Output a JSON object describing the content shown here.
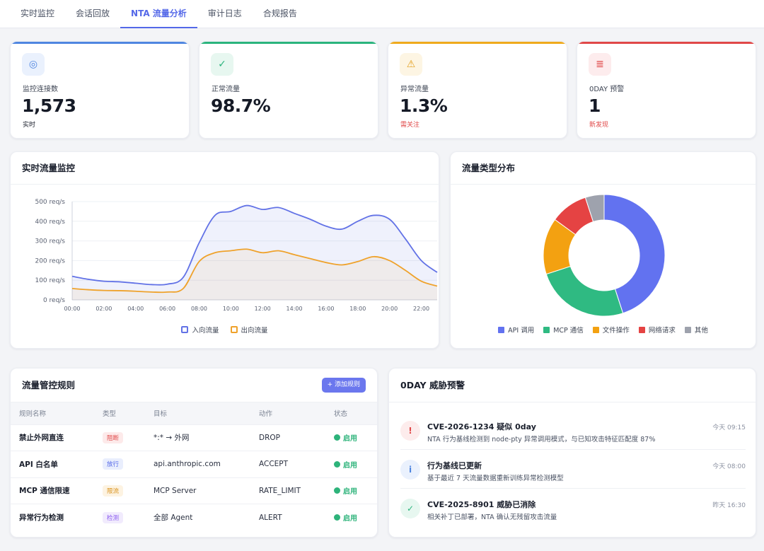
{
  "tabs": [
    {
      "label": "实时监控",
      "active": false
    },
    {
      "label": "会话回放",
      "active": false
    },
    {
      "label": "NTA 流量分析",
      "active": true
    },
    {
      "label": "审计日志",
      "active": false
    },
    {
      "label": "合规报告",
      "active": false
    }
  ],
  "stats": [
    {
      "label": "监控连接数",
      "value": "1,573",
      "sub": "实时",
      "icon": "target-icon",
      "glyph": "◎",
      "accent": "#4f86e0",
      "icon_bg": "#eaf1fd",
      "icon_color": "#4f86e0",
      "sub_color": "#1a1f2c"
    },
    {
      "label": "正常流量",
      "value": "98.7%",
      "sub": "",
      "icon": "check-icon",
      "glyph": "✓",
      "accent": "#2bb47d",
      "icon_bg": "#e7f7f0",
      "icon_color": "#2bb47d",
      "sub_color": "#2bb47d"
    },
    {
      "label": "异常流量",
      "value": "1.3%",
      "sub": "需关注",
      "icon": "warning-icon",
      "glyph": "⚠",
      "accent": "#efaa1d",
      "icon_bg": "#fdf5e3",
      "icon_color": "#e3a020",
      "sub_color": "#e04848"
    },
    {
      "label": "0DAY 预警",
      "value": "1",
      "sub": "新发现",
      "icon": "alarm-list-icon",
      "glyph": "≣",
      "accent": "#e04848",
      "icon_bg": "#fdeced",
      "icon_color": "#e04848",
      "sub_color": "#e04848"
    }
  ],
  "traffic_panel": {
    "title": "实时流量监控"
  },
  "distribution_panel": {
    "title": "流量类型分布"
  },
  "chart_data": [
    {
      "type": "line",
      "x": [
        "00:00",
        "01:00",
        "02:00",
        "03:00",
        "04:00",
        "05:00",
        "06:00",
        "07:00",
        "08:00",
        "09:00",
        "10:00",
        "11:00",
        "12:00",
        "13:00",
        "14:00",
        "15:00",
        "16:00",
        "17:00",
        "18:00",
        "19:00",
        "20:00",
        "21:00",
        "22:00",
        "23:00"
      ],
      "x_ticks": [
        "00:00",
        "02:00",
        "04:00",
        "06:00",
        "08:00",
        "10:00",
        "12:00",
        "14:00",
        "16:00",
        "18:00",
        "20:00",
        "22:00"
      ],
      "y_ticks": [
        "0 req/s",
        "100 req/s",
        "200 req/s",
        "300 req/s",
        "400 req/s",
        "500 req/s"
      ],
      "ylim": [
        0,
        500
      ],
      "series": [
        {
          "name": "入向流量",
          "color": "#6272e6",
          "values": [
            120,
            105,
            95,
            92,
            85,
            78,
            80,
            115,
            290,
            430,
            450,
            480,
            460,
            470,
            440,
            410,
            375,
            360,
            400,
            430,
            410,
            310,
            200,
            140
          ]
        },
        {
          "name": "出向流量",
          "color": "#efa22b",
          "values": [
            58,
            52,
            48,
            47,
            44,
            40,
            40,
            58,
            195,
            240,
            250,
            258,
            240,
            250,
            230,
            210,
            190,
            178,
            195,
            220,
            200,
            150,
            95,
            70
          ]
        }
      ],
      "grid": true,
      "legend": "bottom"
    },
    {
      "type": "pie",
      "categories": [
        "API 调用",
        "MCP 通信",
        "文件操作",
        "网络请求",
        "其他"
      ],
      "values": [
        45,
        25,
        15,
        10,
        5
      ],
      "colors": [
        "#6272f0",
        "#2fba82",
        "#f3a111",
        "#e54343",
        "#9ea2ad"
      ],
      "legend": "bottom"
    }
  ],
  "rules_panel": {
    "title": "流量管控规则",
    "add_label": "+ 添加规则",
    "columns": [
      "规则名称",
      "类型",
      "目标",
      "动作",
      "状态"
    ],
    "rows": [
      {
        "name": "禁止外网直连",
        "type": "阻断",
        "type_bg": "#fdeaea",
        "type_color": "#e04848",
        "target": "*:* → 外网",
        "action": "DROP",
        "status": "启用"
      },
      {
        "name": "API 白名单",
        "type": "放行",
        "type_bg": "#e9eefd",
        "type_color": "#5468e8",
        "target": "api.anthropic.com",
        "action": "ACCEPT",
        "status": "启用"
      },
      {
        "name": "MCP 通信限速",
        "type": "限流",
        "type_bg": "#fdf3e2",
        "type_color": "#d89018",
        "target": "MCP Server",
        "action": "RATE_LIMIT",
        "status": "启用"
      },
      {
        "name": "异常行为检测",
        "type": "检测",
        "type_bg": "#f1ebfd",
        "type_color": "#8b5cf0",
        "target": "全部 Agent",
        "action": "ALERT",
        "status": "启用"
      }
    ]
  },
  "threat_panel": {
    "title": "0DAY 威胁预警",
    "items": [
      {
        "icon": "alert-icon",
        "glyph": "!",
        "bg": "#fdecec",
        "color": "#e04848",
        "title": "CVE-2026-1234 疑似 0day",
        "desc": "NTA 行为基线检测到 node-pty 异常调用模式，与已知攻击特征匹配度 87%",
        "time": "今天 09:15"
      },
      {
        "icon": "info-icon",
        "glyph": "i",
        "bg": "#eaf1fd",
        "color": "#4f86e0",
        "title": "行为基线已更新",
        "desc": "基于最近 7 天流量数据重新训练异常检测模型",
        "time": "今天 08:00"
      },
      {
        "icon": "check-icon",
        "glyph": "✓",
        "bg": "#e7f7f0",
        "color": "#2bb47d",
        "title": "CVE-2025-8901 威胁已消除",
        "desc": "相关补丁已部署，NTA 确认无残留攻击流量",
        "time": "昨天 16:30"
      }
    ]
  }
}
